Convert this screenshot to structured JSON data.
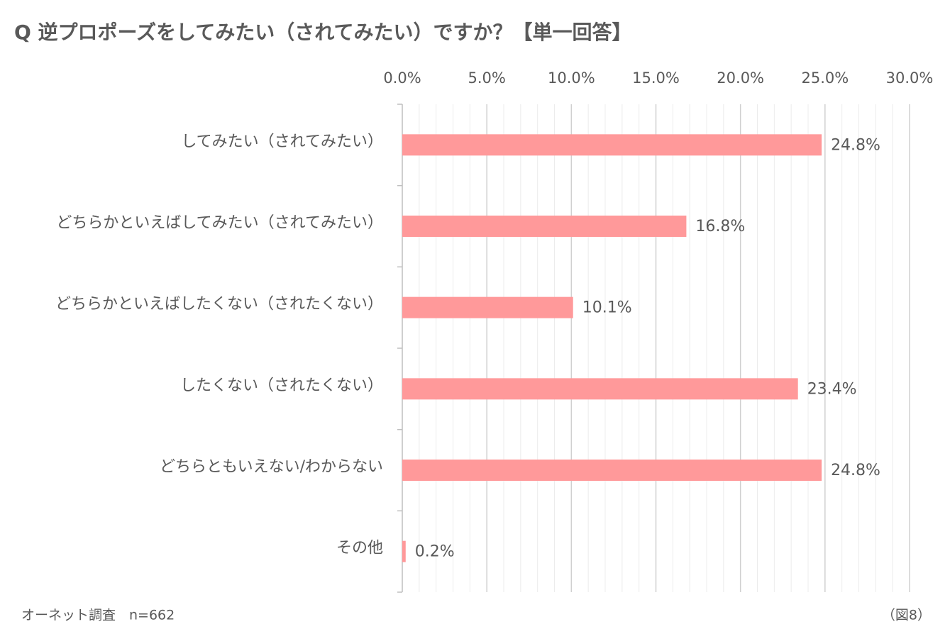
{
  "chart_data": {
    "type": "barh",
    "title": "Q 逆プロポーズをしてみたい（されてみたい）ですか？【単一回答】",
    "categories": [
      "してみたい（されてみたい）",
      "どちらかといえばしてみたい（されてみたい）",
      "どちらかといえばしたくない（されたくない）",
      "したくない（されたくない）",
      "どちらともいえない/わからない",
      "その他"
    ],
    "values": [
      24.8,
      16.8,
      10.1,
      23.4,
      24.8,
      0.2
    ],
    "value_labels": [
      "24.8%",
      "16.8%",
      "10.1%",
      "23.4%",
      "24.8%",
      "0.2%"
    ],
    "color": "#ff999a",
    "xlim": [
      0,
      30
    ],
    "xticks": [
      {
        "value": 0,
        "label": "0.0%"
      },
      {
        "value": 5,
        "label": "5.0%"
      },
      {
        "value": 10,
        "label": "10.0%"
      },
      {
        "value": 15,
        "label": "15.0%"
      },
      {
        "value": 20,
        "label": "20.0%"
      },
      {
        "value": 25,
        "label": "25.0%"
      },
      {
        "value": 30,
        "label": "30.0%"
      }
    ],
    "grid": true,
    "source": "オーネット調査　n=662",
    "figure_label": "（図8）"
  }
}
